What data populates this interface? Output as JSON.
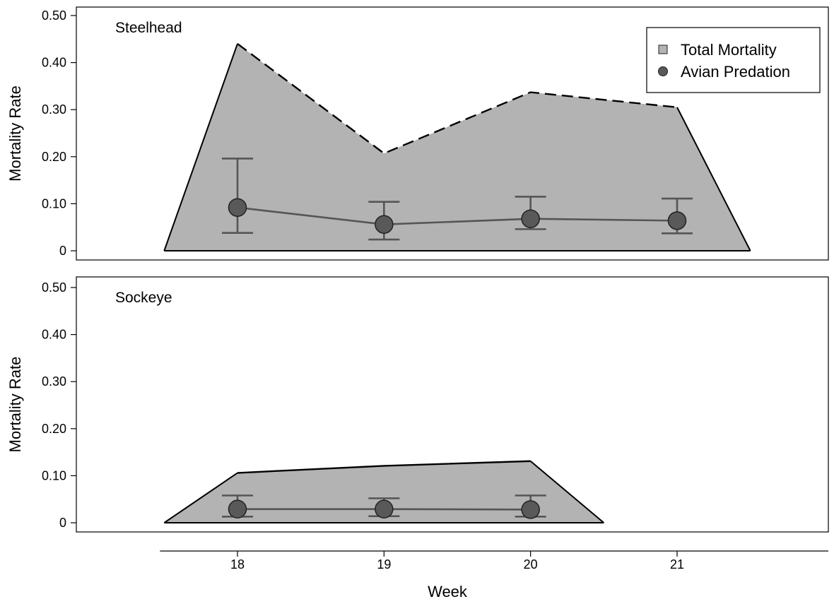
{
  "chart_data": {
    "type": "area",
    "xlabel": "Week",
    "ylabel": "Mortality Rate",
    "x_ticks": [
      "18",
      "19",
      "20",
      "21"
    ],
    "y_ticks": [
      "0",
      "0.10",
      "0.20",
      "0.30",
      "0.40",
      "0.50"
    ],
    "ylim": [
      0,
      0.5
    ],
    "xlim": [
      17,
      22
    ],
    "grid": false,
    "legend": {
      "position": "top-right",
      "entries": [
        "Total Mortality",
        "Avian Predation"
      ]
    },
    "colors": {
      "area_fill": "#b3b3b3",
      "marker_fill": "#595959",
      "line": "#555555",
      "outline": "#000000"
    },
    "panels": [
      {
        "label": "Steelhead",
        "total_mortality": {
          "x": [
            17.5,
            18,
            19,
            20,
            21,
            21.5
          ],
          "y": [
            0,
            0.44,
            0.207,
            0.337,
            0.305,
            0
          ]
        },
        "avian_predation": {
          "x": [
            18,
            19,
            20,
            21
          ],
          "y": [
            0.092,
            0.056,
            0.068,
            0.064
          ],
          "lower": [
            0.038,
            0.024,
            0.046,
            0.037
          ],
          "upper": [
            0.196,
            0.104,
            0.115,
            0.111
          ]
        }
      },
      {
        "label": "Sockeye",
        "total_mortality": {
          "x": [
            17.5,
            18,
            19,
            20,
            20.5
          ],
          "y": [
            0,
            0.106,
            0.121,
            0.131,
            0
          ]
        },
        "avian_predation": {
          "x": [
            18,
            19,
            20
          ],
          "y": [
            0.029,
            0.029,
            0.028
          ],
          "lower": [
            0.013,
            0.014,
            0.013
          ],
          "upper": [
            0.058,
            0.052,
            0.058
          ]
        }
      }
    ]
  }
}
